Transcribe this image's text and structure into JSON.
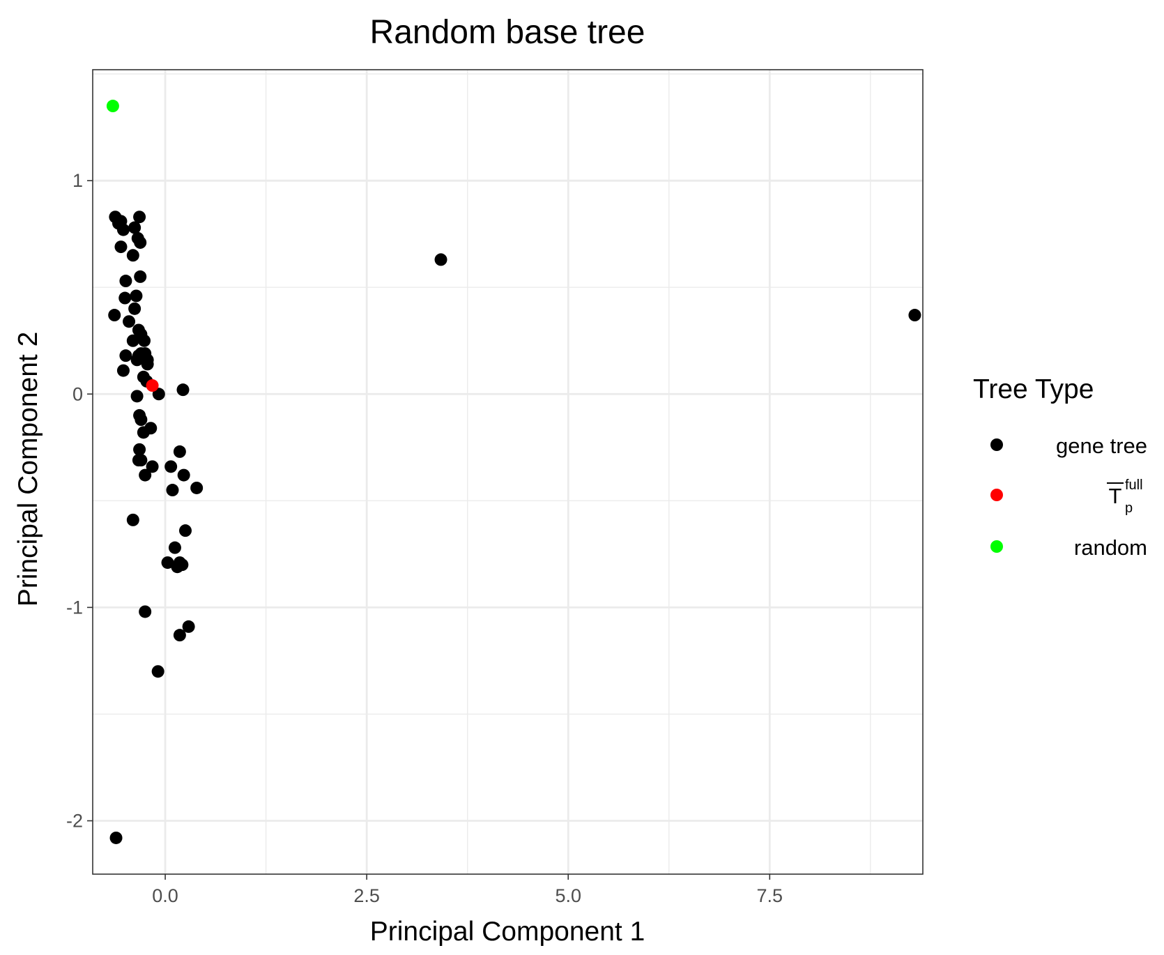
{
  "chart_data": {
    "type": "scatter",
    "title": "Random base tree",
    "xlabel": "Principal Component 1",
    "ylabel": "Principal Component 2",
    "xlim": [
      -0.9,
      9.4
    ],
    "ylim": [
      -2.25,
      1.52
    ],
    "x_ticks": [
      0.0,
      2.5,
      5.0,
      7.5
    ],
    "x_tick_labels": [
      "0.0",
      "2.5",
      "5.0",
      "7.5"
    ],
    "y_ticks": [
      1,
      0,
      -1,
      -2
    ],
    "y_tick_labels": [
      "1",
      "0",
      "-1",
      "-2"
    ],
    "grid": true,
    "legend": {
      "title": "Tree Type",
      "position": "right",
      "entries": [
        {
          "key": "gene_tree",
          "label": "gene tree",
          "color": "#000000"
        },
        {
          "key": "tp_full",
          "label": "T",
          "superscript": "full",
          "subscript": "p",
          "color": "#ff0000"
        },
        {
          "key": "random",
          "label": "random",
          "color": "#00ff00"
        }
      ]
    },
    "series": [
      {
        "key": "gene_tree",
        "color": "#000000",
        "points": [
          [
            -0.62,
            0.83
          ],
          [
            -0.58,
            0.8
          ],
          [
            -0.55,
            0.81
          ],
          [
            -0.52,
            0.77
          ],
          [
            -0.55,
            0.69
          ],
          [
            -0.38,
            0.78
          ],
          [
            -0.32,
            0.83
          ],
          [
            -0.34,
            0.73
          ],
          [
            -0.31,
            0.71
          ],
          [
            -0.4,
            0.65
          ],
          [
            -0.31,
            0.55
          ],
          [
            -0.49,
            0.53
          ],
          [
            -0.36,
            0.46
          ],
          [
            -0.5,
            0.45
          ],
          [
            -0.38,
            0.4
          ],
          [
            -0.63,
            0.37
          ],
          [
            -0.45,
            0.34
          ],
          [
            -0.33,
            0.3
          ],
          [
            -0.3,
            0.28
          ],
          [
            -0.26,
            0.25
          ],
          [
            -0.4,
            0.25
          ],
          [
            -0.25,
            0.19
          ],
          [
            -0.33,
            0.18
          ],
          [
            -0.49,
            0.18
          ],
          [
            -0.3,
            0.19
          ],
          [
            -0.35,
            0.16
          ],
          [
            -0.22,
            0.16
          ],
          [
            -0.22,
            0.14
          ],
          [
            -0.52,
            0.11
          ],
          [
            -0.27,
            0.08
          ],
          [
            -0.23,
            0.06
          ],
          [
            -0.35,
            -0.01
          ],
          [
            -0.08,
            0.0
          ],
          [
            0.22,
            0.02
          ],
          [
            -0.32,
            -0.1
          ],
          [
            -0.3,
            -0.12
          ],
          [
            -0.18,
            -0.16
          ],
          [
            -0.27,
            -0.18
          ],
          [
            -0.32,
            -0.26
          ],
          [
            0.18,
            -0.27
          ],
          [
            -0.33,
            -0.31
          ],
          [
            -0.3,
            -0.31
          ],
          [
            -0.16,
            -0.34
          ],
          [
            0.07,
            -0.34
          ],
          [
            -0.25,
            -0.38
          ],
          [
            0.23,
            -0.38
          ],
          [
            0.09,
            -0.45
          ],
          [
            0.39,
            -0.44
          ],
          [
            -0.4,
            -0.59
          ],
          [
            0.25,
            -0.64
          ],
          [
            0.12,
            -0.72
          ],
          [
            0.03,
            -0.79
          ],
          [
            0.15,
            -0.81
          ],
          [
            0.18,
            -0.79
          ],
          [
            0.21,
            -0.8
          ],
          [
            -0.25,
            -1.02
          ],
          [
            0.29,
            -1.09
          ],
          [
            0.18,
            -1.13
          ],
          [
            -0.09,
            -1.3
          ],
          [
            -0.61,
            -2.08
          ],
          [
            3.42,
            0.63
          ],
          [
            9.3,
            0.37
          ]
        ]
      },
      {
        "key": "tp_full",
        "color": "#ff0000",
        "points": [
          [
            -0.16,
            0.04
          ]
        ]
      },
      {
        "key": "random",
        "color": "#00ff00",
        "points": [
          [
            -0.65,
            1.35
          ]
        ]
      }
    ]
  }
}
